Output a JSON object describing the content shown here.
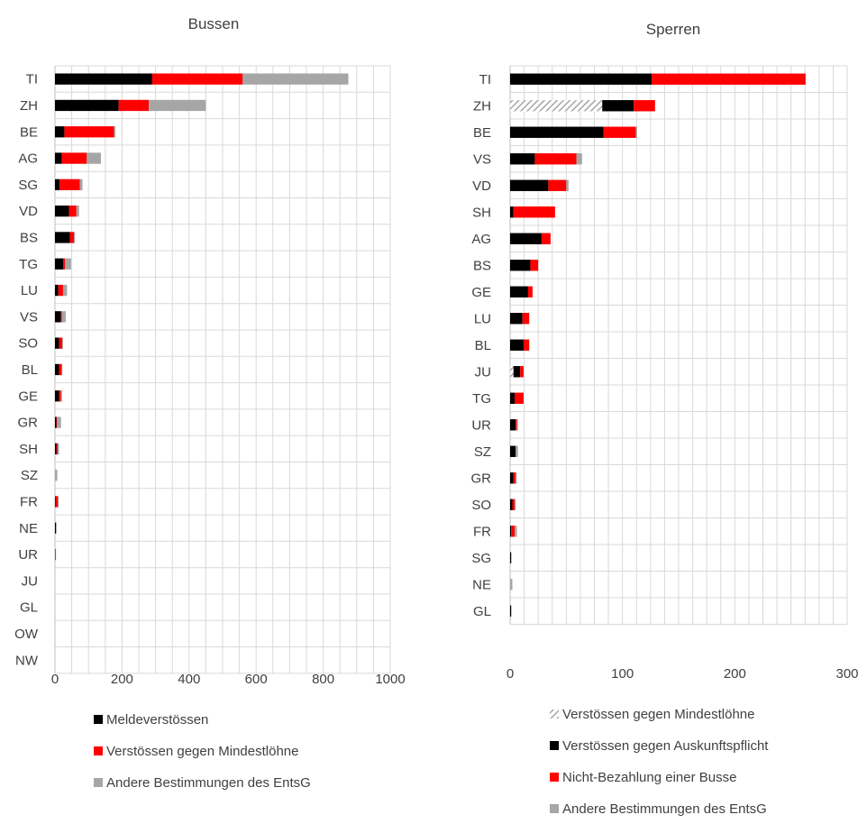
{
  "chart_data": [
    {
      "type": "bar",
      "orientation": "horizontal",
      "stacked": true,
      "title": "Bussen",
      "categories": [
        "TI",
        "ZH",
        "BE",
        "AG",
        "SG",
        "VD",
        "BS",
        "TG",
        "LU",
        "VS",
        "SO",
        "BL",
        "GE",
        "GR",
        "SH",
        "SZ",
        "FR",
        "NE",
        "UR",
        "JU",
        "GL",
        "OW",
        "NW"
      ],
      "series": [
        {
          "name": "Meldeverstössen",
          "color": "#000000",
          "pattern": "solid",
          "values": [
            290,
            190,
            28,
            20,
            14,
            42,
            45,
            25,
            10,
            18,
            12,
            12,
            12,
            4,
            4,
            0,
            2,
            3,
            1,
            0,
            0,
            0,
            0
          ]
        },
        {
          "name": "Verstössen gegen Mindestlöhne",
          "color": "#ff0000",
          "pattern": "solid",
          "values": [
            270,
            90,
            148,
            75,
            60,
            22,
            12,
            5,
            14,
            2,
            10,
            8,
            6,
            2,
            4,
            0,
            7,
            0,
            0,
            0,
            0,
            0,
            0
          ]
        },
        {
          "name": "Andere Bestimmungen des EntsG",
          "color": "#a6a6a6",
          "pattern": "solid",
          "values": [
            315,
            170,
            4,
            42,
            8,
            8,
            3,
            18,
            12,
            12,
            2,
            2,
            3,
            12,
            4,
            7,
            1,
            1,
            2,
            0,
            0,
            0,
            0
          ]
        }
      ],
      "xlim": [
        0,
        1000
      ],
      "xticks": [
        0,
        200,
        400,
        600,
        800,
        1000
      ],
      "grid": true,
      "legend": "bottom"
    },
    {
      "type": "bar",
      "orientation": "horizontal",
      "stacked": true,
      "title": "Sperren",
      "categories": [
        "TI",
        "ZH",
        "BE",
        "VS",
        "VD",
        "SH",
        "AG",
        "BS",
        "GE",
        "LU",
        "BL",
        "JU",
        "TG",
        "UR",
        "SZ",
        "GR",
        "SO",
        "FR",
        "SG",
        "NE",
        "GL"
      ],
      "series": [
        {
          "name": "Verstössen gegen Mindestlöhne",
          "color": "#a6a6a6",
          "pattern": "hatched",
          "values": [
            0,
            82,
            0,
            0,
            0,
            0,
            0,
            0,
            0,
            0,
            0,
            3,
            0,
            0,
            0,
            0,
            0,
            0,
            0,
            0,
            0
          ]
        },
        {
          "name": "Verstössen gegen Auskunftspflicht",
          "color": "#000000",
          "pattern": "solid",
          "values": [
            126,
            28,
            83,
            22,
            34,
            3,
            28,
            18,
            16,
            11,
            12,
            6,
            4,
            5,
            5,
            3,
            2,
            1,
            1,
            0,
            1
          ]
        },
        {
          "name": "Nicht-Bezahlung einer Busse",
          "color": "#ff0000",
          "pattern": "solid",
          "values": [
            137,
            19,
            29,
            37,
            16,
            37,
            8,
            7,
            4,
            6,
            5,
            3,
            8,
            1,
            0,
            2,
            2,
            3,
            0,
            0,
            0
          ]
        },
        {
          "name": "Andere Bestimmungen des EntsG",
          "color": "#a6a6a6",
          "pattern": "solid",
          "values": [
            0,
            0,
            1,
            5,
            2,
            0,
            0,
            0,
            0,
            0,
            0,
            0,
            0,
            1,
            2,
            1,
            1,
            2,
            0,
            2,
            0
          ]
        }
      ],
      "xlim": [
        0,
        300
      ],
      "xticks": [
        0,
        100,
        200,
        300
      ],
      "grid": true,
      "legend": "bottom"
    }
  ]
}
